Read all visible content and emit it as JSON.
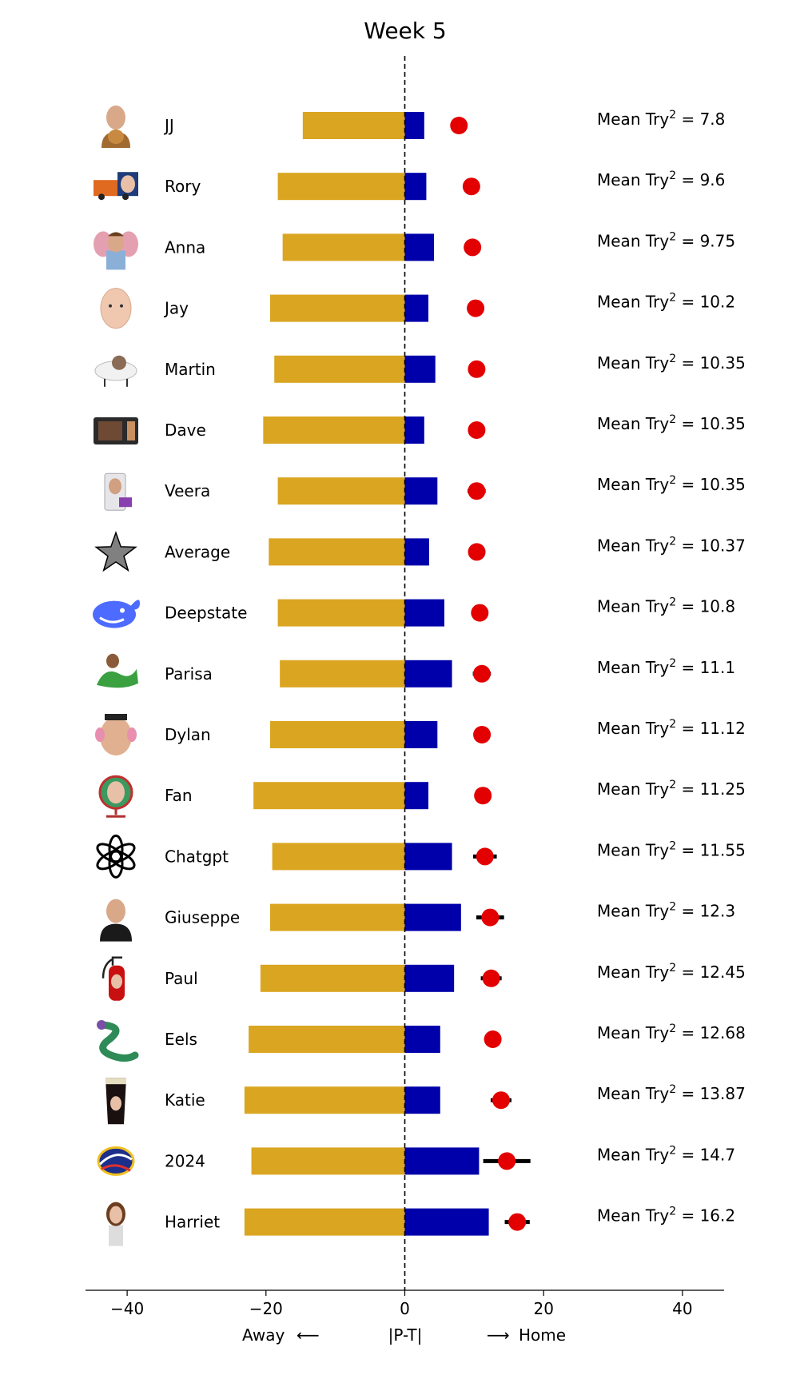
{
  "chart_data": {
    "type": "bar",
    "title": "Week 5",
    "xlabel": {
      "left": "Away",
      "left_arrow": "⟵",
      "center": "|P-T|",
      "right_arrow": "⟶",
      "right": "Home"
    },
    "xlim": [
      -46,
      46
    ],
    "xticks": [
      -40,
      -20,
      0,
      20,
      40
    ],
    "xtick_labels": [
      "−40",
      "−20",
      "0",
      "20",
      "40"
    ],
    "reference_line_x": 0,
    "grid": false,
    "metric_prefix": "Mean Try",
    "metric_superscript": "2",
    "metric_equals": "=",
    "colors": {
      "away": "#DAA520",
      "home": "#0000AA",
      "marker": "#E30000",
      "errorbar": "#000000"
    },
    "rows": [
      {
        "name": "JJ",
        "icon": "avatar-photo-icon",
        "away": -14.7,
        "home": 2.8,
        "mean": 7.8,
        "err": 0.4,
        "label": "7.8"
      },
      {
        "name": "Rory",
        "icon": "truck-photo-icon",
        "away": -18.3,
        "home": 3.1,
        "mean": 9.6,
        "err": 0.3,
        "label": "9.6"
      },
      {
        "name": "Anna",
        "icon": "elephant-photo-icon",
        "away": -17.6,
        "home": 4.2,
        "mean": 9.75,
        "err": 0.4,
        "label": "9.75"
      },
      {
        "name": "Jay",
        "icon": "baby-face-icon",
        "away": -19.4,
        "home": 3.4,
        "mean": 10.2,
        "err": 0.4,
        "label": "10.2"
      },
      {
        "name": "Martin",
        "icon": "sheep-icon",
        "away": -18.8,
        "home": 4.4,
        "mean": 10.35,
        "err": 0.4,
        "label": "10.35"
      },
      {
        "name": "Dave",
        "icon": "microwave-icon",
        "away": -20.4,
        "home": 2.8,
        "mean": 10.35,
        "err": 0.4,
        "label": "10.35"
      },
      {
        "name": "Veera",
        "icon": "appliance-photo-icon",
        "away": -18.3,
        "home": 4.7,
        "mean": 10.35,
        "err": 1.3,
        "label": "10.35"
      },
      {
        "name": "Average",
        "icon": "star-icon",
        "away": -19.6,
        "home": 3.5,
        "mean": 10.37,
        "err": 0.3,
        "label": "10.37"
      },
      {
        "name": "Deepstate",
        "icon": "whale-logo-icon",
        "away": -18.3,
        "home": 5.7,
        "mean": 10.8,
        "err": 0.4,
        "label": "10.8"
      },
      {
        "name": "Parisa",
        "icon": "dinosaur-photo-icon",
        "away": -18.0,
        "home": 6.8,
        "mean": 11.1,
        "err": 1.3,
        "label": "11.1"
      },
      {
        "name": "Dylan",
        "icon": "potato-head-photo-icon",
        "away": -19.4,
        "home": 4.7,
        "mean": 11.12,
        "err": 0.5,
        "label": "11.12"
      },
      {
        "name": "Fan",
        "icon": "globe-photo-icon",
        "away": -21.8,
        "home": 3.4,
        "mean": 11.25,
        "err": 0.6,
        "label": "11.25"
      },
      {
        "name": "Chatgpt",
        "icon": "openai-logo-icon",
        "away": -19.1,
        "home": 6.8,
        "mean": 11.55,
        "err": 1.7,
        "label": "11.55"
      },
      {
        "name": "Giuseppe",
        "icon": "person-photo-icon",
        "away": -19.4,
        "home": 8.1,
        "mean": 12.3,
        "err": 2.0,
        "label": "12.3"
      },
      {
        "name": "Paul",
        "icon": "fire-extinguisher-icon",
        "away": -20.8,
        "home": 7.1,
        "mean": 12.45,
        "err": 1.5,
        "label": "12.45"
      },
      {
        "name": "Eels",
        "icon": "eel-icon",
        "away": -22.5,
        "home": 5.1,
        "mean": 12.68,
        "err": 0.5,
        "label": "12.68"
      },
      {
        "name": "Katie",
        "icon": "pint-glass-icon",
        "away": -23.1,
        "home": 5.1,
        "mean": 13.87,
        "err": 1.5,
        "label": "13.87"
      },
      {
        "name": "2024",
        "icon": "rugby-2024-logo-icon",
        "away": -22.1,
        "home": 10.7,
        "mean": 14.7,
        "err": 3.4,
        "label": "14.7"
      },
      {
        "name": "Harriet",
        "icon": "woman-photo-icon",
        "away": -23.1,
        "home": 12.1,
        "mean": 16.2,
        "err": 1.8,
        "label": "16.2"
      }
    ]
  }
}
